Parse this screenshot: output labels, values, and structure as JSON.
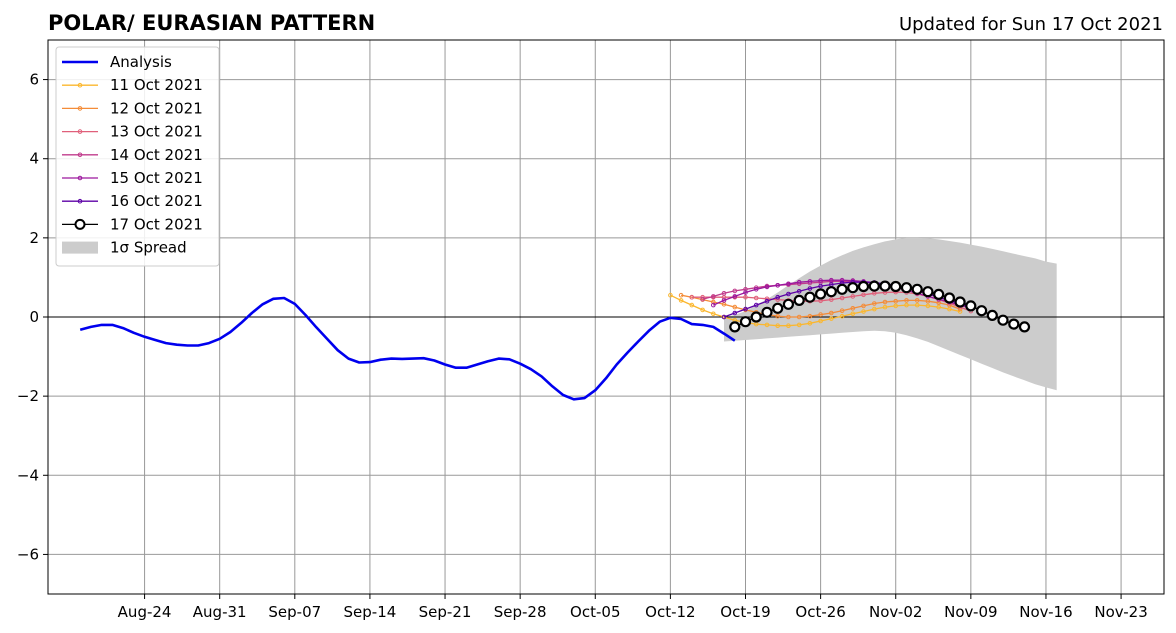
{
  "chart_data": {
    "type": "line",
    "title": "POLAR/ EURASIAN  PATTERN",
    "subtitle": "Updated for Sun 17 Oct 2021",
    "xlabel": "",
    "ylabel": "",
    "x_range": [
      "2021-08-15",
      "2021-11-27"
    ],
    "ylim": [
      -7,
      7
    ],
    "y_ticks": [
      -6,
      -4,
      -2,
      0,
      2,
      4,
      6
    ],
    "y_tick_labels": [
      "−6",
      "−4",
      "−2",
      "0",
      "2",
      "4",
      "6"
    ],
    "x_ticks": [
      "2021-08-24",
      "2021-08-31",
      "2021-09-07",
      "2021-09-14",
      "2021-09-21",
      "2021-09-28",
      "2021-10-05",
      "2021-10-12",
      "2021-10-19",
      "2021-10-26",
      "2021-11-02",
      "2021-11-09",
      "2021-11-16",
      "2021-11-23"
    ],
    "x_tick_labels": [
      "Aug-24",
      "Aug-31",
      "Sep-07",
      "Sep-14",
      "Sep-21",
      "Sep-28",
      "Oct-05",
      "Oct-12",
      "Oct-19",
      "Oct-26",
      "Nov-02",
      "Nov-09",
      "Nov-16",
      "Nov-23"
    ],
    "grid": true,
    "legend_position": "top-left",
    "zero_line": 0,
    "analysis": {
      "name": "Analysis",
      "color": "#0000ee",
      "start": "2021-08-18",
      "values": [
        -0.32,
        -0.25,
        -0.2,
        -0.2,
        -0.28,
        -0.4,
        -0.5,
        -0.58,
        -0.66,
        -0.7,
        -0.72,
        -0.72,
        -0.66,
        -0.55,
        -0.38,
        -0.15,
        0.1,
        0.32,
        0.46,
        0.48,
        0.33,
        0.05,
        -0.26,
        -0.55,
        -0.84,
        -1.05,
        -1.15,
        -1.14,
        -1.08,
        -1.05,
        -1.06,
        -1.05,
        -1.04,
        -1.1,
        -1.2,
        -1.28,
        -1.28,
        -1.2,
        -1.12,
        -1.05,
        -1.07,
        -1.18,
        -1.32,
        -1.5,
        -1.75,
        -1.97,
        -2.08,
        -2.05,
        -1.85,
        -1.55,
        -1.2,
        -0.9,
        -0.62,
        -0.35,
        -0.12,
        -0.02,
        -0.05,
        -0.18,
        -0.2,
        -0.25,
        -0.42,
        -0.6
      ]
    },
    "forecasts": [
      {
        "name": "11 Oct 2021",
        "color": "#fbb72e",
        "start": "2021-10-12",
        "values": [
          0.55,
          0.42,
          0.3,
          0.18,
          0.08,
          0.0,
          -0.08,
          -0.14,
          -0.18,
          -0.2,
          -0.22,
          -0.22,
          -0.2,
          -0.16,
          -0.1,
          -0.04,
          0.02,
          0.08,
          0.14,
          0.2,
          0.25,
          0.28,
          0.3,
          0.3,
          0.28,
          0.25,
          0.2,
          0.14
        ]
      },
      {
        "name": "12 Oct 2021",
        "color": "#f48c38",
        "start": "2021-10-13",
        "values": [
          0.55,
          0.5,
          0.44,
          0.38,
          0.32,
          0.25,
          0.18,
          0.12,
          0.06,
          0.02,
          0.0,
          0.0,
          0.02,
          0.06,
          0.1,
          0.16,
          0.22,
          0.28,
          0.34,
          0.38,
          0.4,
          0.42,
          0.42,
          0.4,
          0.36,
          0.3,
          0.2
        ]
      },
      {
        "name": "13 Oct 2021",
        "color": "#e0607a",
        "start": "2021-10-14",
        "values": [
          0.5,
          0.5,
          0.5,
          0.5,
          0.5,
          0.5,
          0.48,
          0.46,
          0.44,
          0.42,
          0.4,
          0.4,
          0.41,
          0.44,
          0.48,
          0.52,
          0.56,
          0.6,
          0.62,
          0.63,
          0.62,
          0.58,
          0.52,
          0.44,
          0.35,
          0.25,
          0.15
        ]
      },
      {
        "name": "14 Oct 2021",
        "color": "#c13b8c",
        "start": "2021-10-15",
        "values": [
          0.45,
          0.52,
          0.6,
          0.66,
          0.7,
          0.74,
          0.78,
          0.8,
          0.82,
          0.84,
          0.86,
          0.88,
          0.9,
          0.9,
          0.9,
          0.88,
          0.86,
          0.82,
          0.78,
          0.72,
          0.65,
          0.58,
          0.5,
          0.42,
          0.34,
          0.25
        ]
      },
      {
        "name": "15 Oct 2021",
        "color": "#9c179e",
        "start": "2021-10-16",
        "values": [
          0.3,
          0.42,
          0.52,
          0.62,
          0.7,
          0.76,
          0.8,
          0.84,
          0.88,
          0.9,
          0.92,
          0.93,
          0.93,
          0.92,
          0.9,
          0.87,
          0.82,
          0.75,
          0.68,
          0.6,
          0.52,
          0.45,
          0.38,
          0.3,
          0.22
        ]
      },
      {
        "name": "16 Oct 2021",
        "color": "#5c01a6",
        "start": "2021-10-17",
        "values": [
          0.0,
          0.1,
          0.2,
          0.3,
          0.4,
          0.5,
          0.58,
          0.65,
          0.72,
          0.78,
          0.82,
          0.86,
          0.88,
          0.88,
          0.87,
          0.84,
          0.8,
          0.74,
          0.67,
          0.59,
          0.5,
          0.42,
          0.34,
          0.25
        ]
      },
      {
        "name": "17 Oct 2021",
        "color": "#000000",
        "start": "2021-10-18",
        "values": [
          -0.25,
          -0.12,
          0.0,
          0.12,
          0.22,
          0.32,
          0.42,
          0.5,
          0.58,
          0.64,
          0.7,
          0.74,
          0.77,
          0.78,
          0.78,
          0.77,
          0.74,
          0.7,
          0.64,
          0.57,
          0.48,
          0.38,
          0.28,
          0.16,
          0.04,
          -0.08,
          -0.18,
          -0.25
        ]
      }
    ],
    "spread": {
      "name": "1σ Spread",
      "color": "#cccccc",
      "start": "2021-10-17",
      "upper": [
        0.0,
        0.05,
        0.15,
        0.3,
        0.45,
        0.62,
        0.8,
        0.98,
        1.15,
        1.3,
        1.44,
        1.56,
        1.67,
        1.76,
        1.84,
        1.91,
        1.96,
        2.0,
        2.0,
        1.99,
        1.96,
        1.92,
        1.88,
        1.83,
        1.78,
        1.72,
        1.66,
        1.6,
        1.54,
        1.48,
        1.4,
        1.35
      ],
      "lower": [
        -0.62,
        -0.6,
        -0.58,
        -0.56,
        -0.54,
        -0.52,
        -0.5,
        -0.48,
        -0.46,
        -0.44,
        -0.42,
        -0.4,
        -0.38,
        -0.36,
        -0.35,
        -0.36,
        -0.4,
        -0.46,
        -0.54,
        -0.63,
        -0.74,
        -0.85,
        -0.96,
        -1.07,
        -1.18,
        -1.29,
        -1.4,
        -1.5,
        -1.6,
        -1.7,
        -1.78,
        -1.85
      ]
    },
    "legend": [
      {
        "label": "Analysis",
        "color": "#0000ee",
        "kind": "thick-line"
      },
      {
        "label": "11 Oct 2021",
        "color": "#fbb72e",
        "kind": "marker-line"
      },
      {
        "label": "12 Oct 2021",
        "color": "#f48c38",
        "kind": "marker-line"
      },
      {
        "label": "13 Oct 2021",
        "color": "#e0607a",
        "kind": "marker-line"
      },
      {
        "label": "14 Oct 2021",
        "color": "#c13b8c",
        "kind": "marker-line"
      },
      {
        "label": "15 Oct 2021",
        "color": "#9c179e",
        "kind": "marker-line"
      },
      {
        "label": "16 Oct 2021",
        "color": "#5c01a6",
        "kind": "marker-line"
      },
      {
        "label": "17 Oct 2021",
        "color": "#000000",
        "kind": "big-marker-line"
      },
      {
        "label": "1σ Spread",
        "color": "#cccccc",
        "kind": "patch"
      }
    ]
  }
}
